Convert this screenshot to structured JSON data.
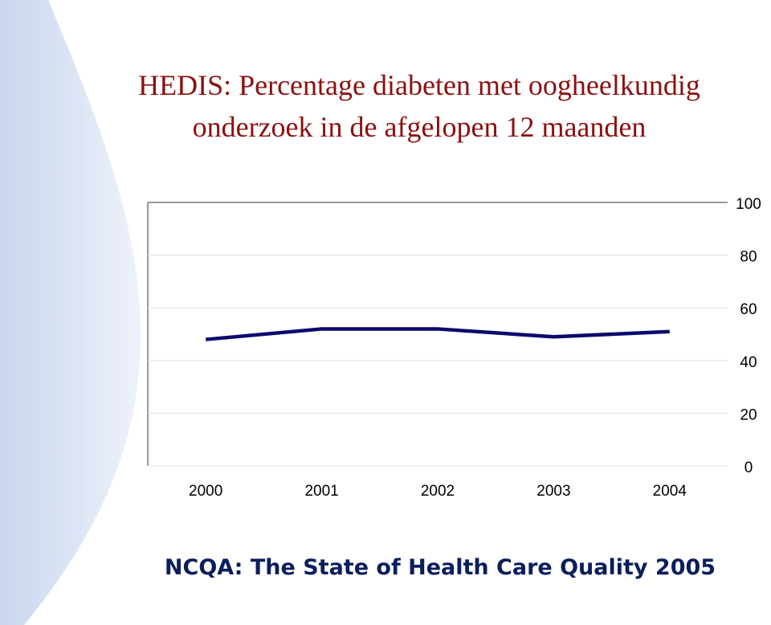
{
  "chart_data": {
    "type": "line",
    "title": [
      "HEDIS: Percentage diabeten met oogheelkundig",
      "onderzoek in de afgelopen 12 maanden"
    ],
    "categories": [
      "2000",
      "2001",
      "2002",
      "2003",
      "2004"
    ],
    "series": [
      {
        "color": "#0a0a6e",
        "values": [
          48,
          52,
          52,
          49,
          51
        ]
      }
    ],
    "ylim": [
      0,
      100
    ],
    "yticks": [
      0,
      20,
      40,
      60,
      80,
      100
    ],
    "grid": true,
    "footer": "NCQA: The State of Health Care Quality 2005"
  }
}
